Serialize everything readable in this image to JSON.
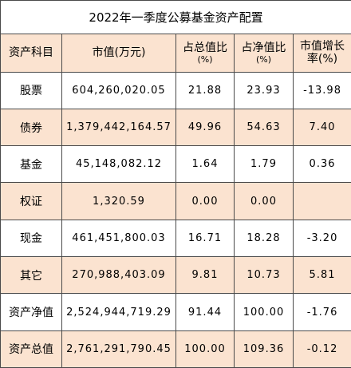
{
  "title": "2022年一季度公募基金资产配置",
  "headers": {
    "col1": "资产科目",
    "col2": "市值(万元)",
    "col3_line1": "占总值比",
    "col3_line2": "(%)",
    "col4_line1": "占净值比",
    "col4_line2": "(%)",
    "col5_line1": "市值增长",
    "col5_line2": "率(%)"
  },
  "rows": [
    {
      "label": "股票",
      "value": "604,260,020.05",
      "pct_total": "21.88",
      "pct_net": "23.93",
      "growth": "-13.98"
    },
    {
      "label": "债券",
      "value": "1,379,442,164.57",
      "pct_total": "49.96",
      "pct_net": "54.63",
      "growth": "7.40"
    },
    {
      "label": "基金",
      "value": "45,148,082.12",
      "pct_total": "1.64",
      "pct_net": "1.79",
      "growth": "0.36"
    },
    {
      "label": "权证",
      "value": "1,320.59",
      "pct_total": "0.00",
      "pct_net": "0.00",
      "growth": ""
    },
    {
      "label": "现金",
      "value": "461,451,800.03",
      "pct_total": "16.71",
      "pct_net": "18.28",
      "growth": "-3.20"
    },
    {
      "label": "其它",
      "value": "270,988,403.09",
      "pct_total": "9.81",
      "pct_net": "10.73",
      "growth": "5.81"
    },
    {
      "label": "资产净值",
      "value": "2,524,944,719.29",
      "pct_total": "91.44",
      "pct_net": "100.00",
      "growth": "-1.76"
    },
    {
      "label": "资产总值",
      "value": "2,761,291,790.45",
      "pct_total": "100.00",
      "pct_net": "109.36",
      "growth": "-0.12"
    }
  ],
  "colors": {
    "header_fill": "#fbe3d0",
    "shaded_row_fill": "#fbe3d0",
    "border": "#4a4a4a"
  }
}
